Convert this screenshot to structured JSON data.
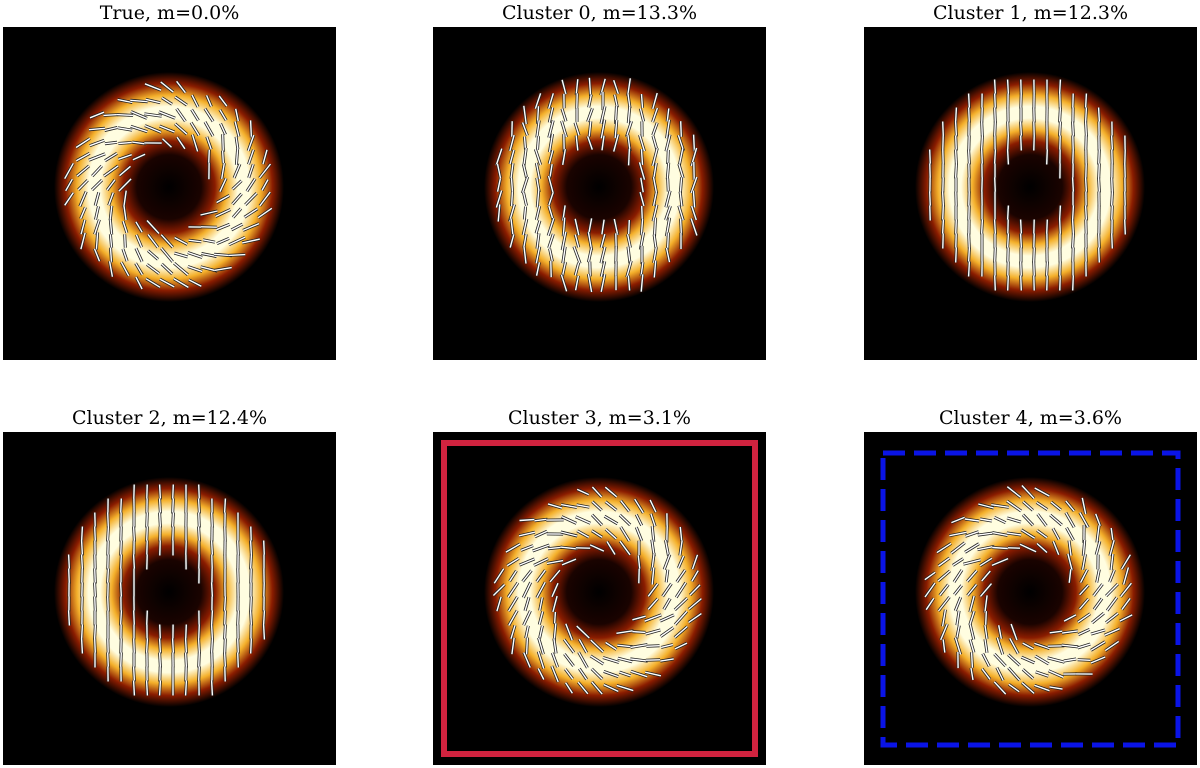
{
  "panels": [
    {
      "title": "True, m=0.0%",
      "pattern": "swirl",
      "frame": null
    },
    {
      "title": "Cluster 0, m=13.3%",
      "pattern": "vertical-noisy",
      "frame": null
    },
    {
      "title": "Cluster 1, m=12.3%",
      "pattern": "vertical-grid",
      "frame": null
    },
    {
      "title": "Cluster 2, m=12.4%",
      "pattern": "vertical-grid",
      "frame": null
    },
    {
      "title": "Cluster 3, m=3.1%",
      "pattern": "swirl",
      "frame": {
        "style": "solid",
        "color": "#d0233f"
      }
    },
    {
      "title": "Cluster 4, m=3.6%",
      "pattern": "swirl",
      "frame": {
        "style": "dashed",
        "color": "#0a14e6"
      }
    }
  ],
  "colors": {
    "ring_core": "#fffde0",
    "ring_mid": "#f4b02b",
    "ring_edge": "#8a1c00",
    "background": "#000000",
    "ticks": "#ffffff"
  }
}
